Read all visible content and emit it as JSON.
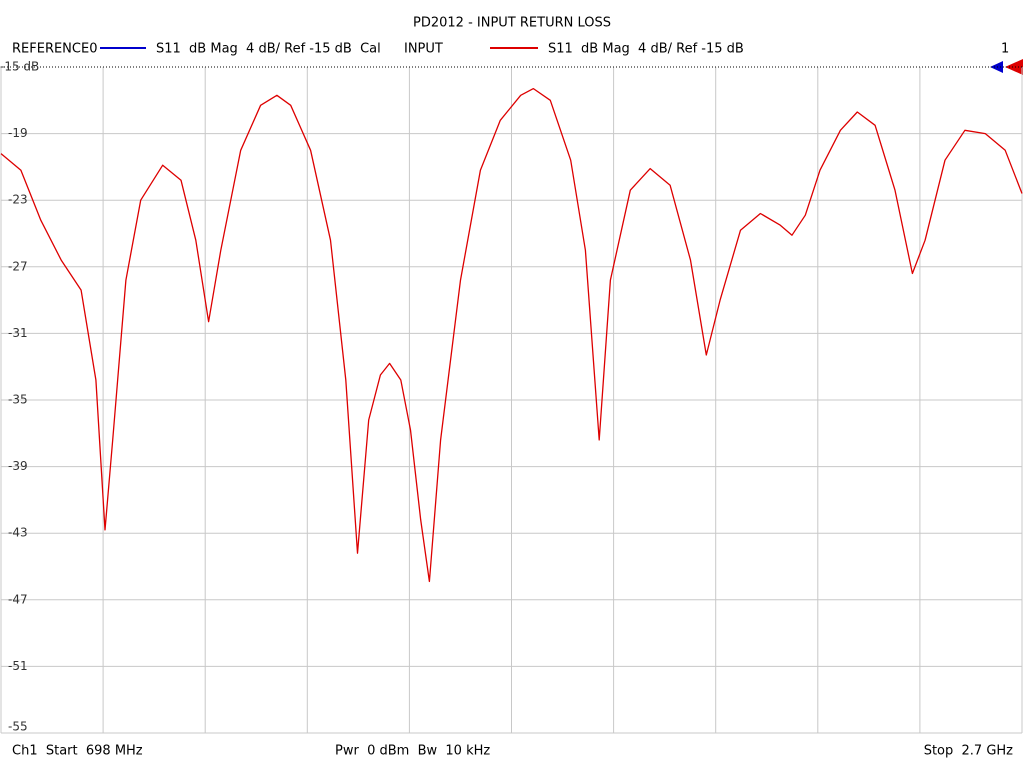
{
  "chart_data": {
    "type": "line",
    "title": "PD2012 - INPUT RETURN LOSS",
    "reference": {
      "name": "REFERENCE0",
      "color": "#0000cc",
      "label": "S11  dB Mag  4 dB/ Ref -15 dB  Cal"
    },
    "marker_label": "1",
    "footer": {
      "start": "Ch1  Start  698 MHz",
      "power": "Pwr  0 dBm  Bw  10 kHz",
      "stop": "Stop  2.7 GHz"
    },
    "x": [
      698,
      737,
      776,
      816,
      855,
      884,
      902,
      917,
      943,
      972,
      1015,
      1051,
      1080,
      1105,
      1129,
      1168,
      1207,
      1239,
      1266,
      1305,
      1344,
      1374,
      1397,
      1419,
      1442,
      1460,
      1482,
      1501,
      1521,
      1538,
      1560,
      1599,
      1638,
      1677,
      1717,
      1742,
      1775,
      1815,
      1844,
      1871,
      1893,
      1932,
      1971,
      2010,
      2050,
      2081,
      2108,
      2148,
      2187,
      2226,
      2249,
      2275,
      2304,
      2344,
      2377,
      2412,
      2451,
      2485,
      2510,
      2549,
      2588,
      2628,
      2667,
      2700
    ],
    "series": [
      {
        "name": "INPUT",
        "label": "S11  dB Mag  4 dB/ Ref -15 dB",
        "color": "#dd0000",
        "values": [
          -20.2,
          -21.2,
          -24.2,
          -26.6,
          -28.4,
          -33.8,
          -42.8,
          -37.4,
          -27.8,
          -23.0,
          -20.9,
          -21.8,
          -25.4,
          -30.3,
          -26.0,
          -20.0,
          -17.3,
          -16.7,
          -17.3,
          -20.0,
          -25.4,
          -33.8,
          -44.2,
          -36.2,
          -33.5,
          -32.8,
          -33.8,
          -36.8,
          -42.2,
          -45.9,
          -37.4,
          -27.8,
          -21.2,
          -18.2,
          -16.7,
          -16.3,
          -17.0,
          -20.6,
          -26.0,
          -37.4,
          -27.8,
          -22.4,
          -21.1,
          -22.1,
          -26.6,
          -32.3,
          -29.0,
          -24.8,
          -23.8,
          -24.5,
          -25.1,
          -23.9,
          -21.2,
          -18.8,
          -17.7,
          -18.5,
          -22.4,
          -27.4,
          -25.4,
          -20.6,
          -18.8,
          -19.0,
          -20.0,
          -22.6
        ]
      }
    ],
    "xlim": [
      698,
      2700
    ],
    "xticks": [
      698,
      898.2,
      1098.4,
      1298.6,
      1498.8,
      1699,
      1899.2,
      2099.4,
      2299.6,
      2499.8,
      2700
    ],
    "ylim": [
      -55,
      -15
    ],
    "yticks": [
      {
        "value": -15,
        "label": "-15 dB"
      },
      -19,
      -23,
      -27,
      -31,
      -35,
      -39,
      -43,
      -47,
      -51,
      -55
    ],
    "grid": true
  }
}
